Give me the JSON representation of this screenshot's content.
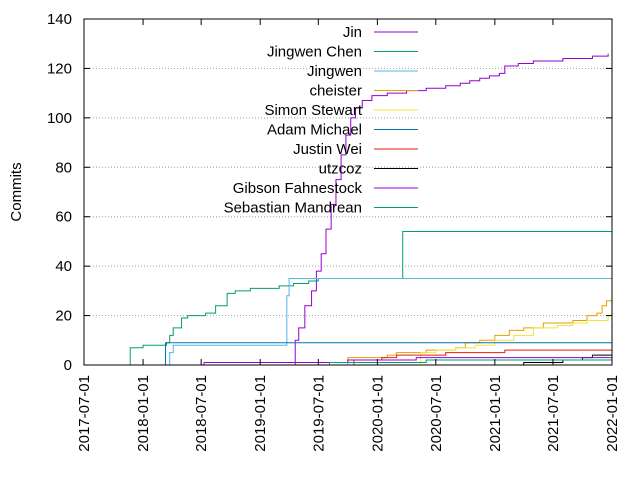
{
  "chart_data": {
    "type": "line",
    "title": "",
    "xlabel": "",
    "ylabel": "Commits",
    "x_axis_kind": "date",
    "xlim": [
      "2017-07-01",
      "2022-01-01"
    ],
    "ylim": [
      0,
      140
    ],
    "x_ticks": [
      "2017-07-01",
      "2018-01-01",
      "2018-07-01",
      "2019-01-01",
      "2019-07-01",
      "2020-01-01",
      "2020-07-01",
      "2021-01-01",
      "2021-07-01",
      "2022-01-01"
    ],
    "y_ticks": [
      0,
      20,
      40,
      60,
      80,
      100,
      120,
      140
    ],
    "grid": {
      "y_major": true,
      "style": "dotted",
      "x_major": false
    },
    "legend_position": "top-right",
    "series": [
      {
        "name": "Jin",
        "color": "#9400d3",
        "step": true,
        "points": [
          [
            "2019-04-10",
            0
          ],
          [
            "2019-04-20",
            10
          ],
          [
            "2019-05-01",
            15
          ],
          [
            "2019-05-20",
            24
          ],
          [
            "2019-06-10",
            30
          ],
          [
            "2019-06-25",
            38
          ],
          [
            "2019-07-10",
            45
          ],
          [
            "2019-07-25",
            55
          ],
          [
            "2019-08-10",
            65
          ],
          [
            "2019-08-25",
            75
          ],
          [
            "2019-09-10",
            85
          ],
          [
            "2019-09-25",
            93
          ],
          [
            "2019-10-10",
            100
          ],
          [
            "2019-10-25",
            104
          ],
          [
            "2019-11-15",
            107
          ],
          [
            "2019-12-15",
            109
          ],
          [
            "2020-02-01",
            110
          ],
          [
            "2020-04-01",
            111
          ],
          [
            "2020-06-01",
            112
          ],
          [
            "2020-08-01",
            113
          ],
          [
            "2020-09-15",
            114
          ],
          [
            "2020-10-15",
            115
          ],
          [
            "2020-11-15",
            116
          ],
          [
            "2020-12-15",
            117
          ],
          [
            "2021-01-15",
            118
          ],
          [
            "2021-02-01",
            121
          ],
          [
            "2021-03-15",
            122
          ],
          [
            "2021-05-01",
            123
          ],
          [
            "2021-08-01",
            124
          ],
          [
            "2021-11-01",
            125
          ],
          [
            "2021-12-20",
            126
          ]
        ]
      },
      {
        "name": "Jingwen Chen",
        "color": "#009e73",
        "step": true,
        "points": [
          [
            "2017-11-20",
            0
          ],
          [
            "2017-11-22",
            7
          ],
          [
            "2018-01-01",
            8
          ],
          [
            "2018-03-15",
            9
          ],
          [
            "2018-03-25",
            12
          ],
          [
            "2018-04-05",
            15
          ],
          [
            "2018-05-01",
            19
          ],
          [
            "2018-05-20",
            20
          ],
          [
            "2018-07-15",
            21
          ],
          [
            "2018-08-15",
            24
          ],
          [
            "2018-09-20",
            29
          ],
          [
            "2018-10-15",
            30
          ],
          [
            "2018-12-01",
            31
          ],
          [
            "2019-03-01",
            32
          ],
          [
            "2019-04-15",
            33
          ],
          [
            "2019-06-01",
            34
          ],
          [
            "2019-07-01",
            35
          ],
          [
            "2019-09-01",
            35
          ],
          [
            "2020-03-15",
            35
          ],
          [
            "2020-03-20",
            54
          ],
          [
            "2021-12-31",
            54
          ]
        ]
      },
      {
        "name": "Jingwen",
        "color": "#56b4e9",
        "step": true,
        "points": [
          [
            "2018-03-20",
            0
          ],
          [
            "2018-03-25",
            5
          ],
          [
            "2018-04-05",
            8
          ],
          [
            "2019-03-15",
            8
          ],
          [
            "2019-03-25",
            28
          ],
          [
            "2019-04-01",
            35
          ],
          [
            "2021-12-31",
            35
          ]
        ]
      },
      {
        "name": "cheister",
        "color": "#e69f00",
        "step": true,
        "points": [
          [
            "2019-09-15",
            0
          ],
          [
            "2019-10-01",
            3
          ],
          [
            "2020-02-01",
            4
          ],
          [
            "2020-03-01",
            5
          ],
          [
            "2020-06-01",
            6
          ],
          [
            "2020-09-01",
            7
          ],
          [
            "2020-10-01",
            9
          ],
          [
            "2020-11-15",
            10
          ],
          [
            "2021-01-01",
            12
          ],
          [
            "2021-02-15",
            14
          ],
          [
            "2021-04-01",
            15
          ],
          [
            "2021-06-01",
            17
          ],
          [
            "2021-09-01",
            18
          ],
          [
            "2021-10-15",
            20
          ],
          [
            "2021-11-15",
            21
          ],
          [
            "2021-12-01",
            24
          ],
          [
            "2021-12-15",
            26
          ],
          [
            "2021-12-31",
            26
          ]
        ]
      },
      {
        "name": "Simon Stewart",
        "color": "#f0e442",
        "step": true,
        "points": [
          [
            "2020-05-01",
            0
          ],
          [
            "2020-05-15",
            5
          ],
          [
            "2020-07-01",
            6
          ],
          [
            "2020-09-01",
            7
          ],
          [
            "2020-11-01",
            8
          ],
          [
            "2021-01-01",
            10
          ],
          [
            "2021-03-01",
            12
          ],
          [
            "2021-05-01",
            15
          ],
          [
            "2021-07-15",
            16
          ],
          [
            "2021-09-01",
            17
          ],
          [
            "2021-10-15",
            18
          ],
          [
            "2021-12-20",
            20
          ],
          [
            "2021-12-31",
            21
          ]
        ]
      },
      {
        "name": "Adam Michael",
        "color": "#0072b2",
        "step": true,
        "points": [
          [
            "2018-03-10",
            0
          ],
          [
            "2018-03-12",
            9
          ],
          [
            "2021-12-31",
            9
          ]
        ]
      },
      {
        "name": "Justin Wei",
        "color": "#e51e10",
        "step": true,
        "points": [
          [
            "2019-10-15",
            0
          ],
          [
            "2019-10-20",
            2
          ],
          [
            "2020-01-15",
            3
          ],
          [
            "2020-03-01",
            4
          ],
          [
            "2020-08-01",
            5
          ],
          [
            "2021-02-01",
            6
          ],
          [
            "2021-12-31",
            6
          ]
        ]
      },
      {
        "name": "utzcoz",
        "color": "#000000",
        "step": true,
        "points": [
          [
            "2021-01-01",
            0
          ],
          [
            "2021-04-01",
            1
          ],
          [
            "2021-08-01",
            2
          ],
          [
            "2021-10-01",
            3
          ],
          [
            "2021-11-01",
            4
          ],
          [
            "2021-12-31",
            4
          ]
        ]
      },
      {
        "name": "Gibson Fahnestock",
        "color": "#9400d3",
        "step": true,
        "points": [
          [
            "2018-07-01",
            0
          ],
          [
            "2018-07-10",
            1
          ],
          [
            "2019-10-01",
            2
          ],
          [
            "2020-05-01",
            3
          ],
          [
            "2021-12-31",
            3
          ]
        ]
      },
      {
        "name": "Sebastian Mandrean",
        "color": "#009e73",
        "step": true,
        "points": [
          [
            "2019-08-01",
            0
          ],
          [
            "2019-08-05",
            1
          ],
          [
            "2020-06-01",
            2
          ],
          [
            "2021-12-31",
            2
          ]
        ]
      }
    ]
  }
}
